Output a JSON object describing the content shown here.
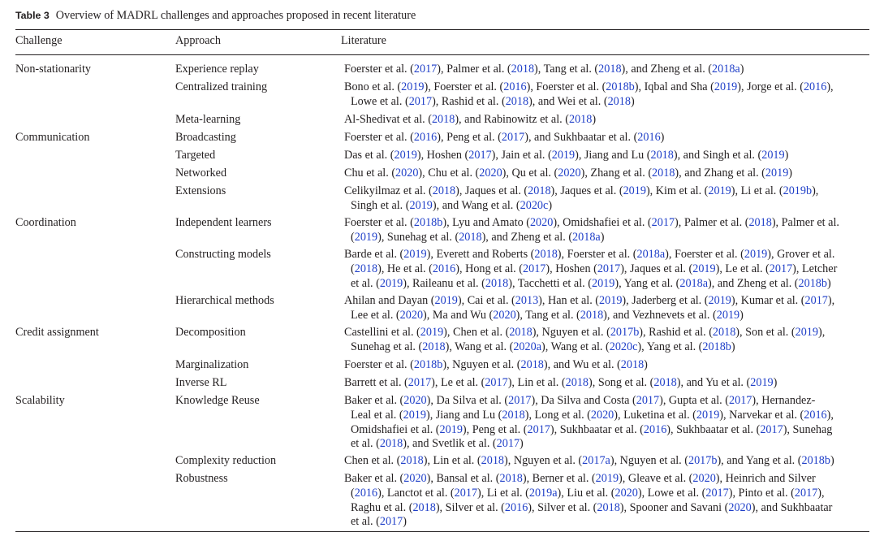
{
  "table": {
    "label": "Table 3",
    "caption": "Overview of MADRL challenges and approaches proposed in recent literature",
    "headers": {
      "challenge": "Challenge",
      "approach": "Approach",
      "literature": "Literature"
    },
    "rows": [
      {
        "challenge": "Non-stationarity",
        "approach": "Experience replay",
        "literature": [
          "Foerster et al. (2017), Palmer et al. (2018), Tang et al. (2018), and  Zheng et al. (2018a)"
        ]
      },
      {
        "challenge": "",
        "approach": "Centralized training",
        "literature": [
          "Bono et al. (2019), Foerster et al. (2016), Foerster et al. (2018b), Iqbal and Sha (2019), Jorge et al. (2016),",
          "Lowe et al. (2017), Rashid et al. (2018), and Wei et al. (2018)"
        ]
      },
      {
        "challenge": "",
        "approach": "Meta-learning",
        "literature": [
          "Al-Shedivat et al. (2018), and Rabinowitz et al. (2018)"
        ]
      },
      {
        "challenge": "Communication",
        "approach": "Broadcasting",
        "literature": [
          "Foerster et al. (2016), Peng et al. (2017), and Sukhbaatar et al. (2016)"
        ]
      },
      {
        "challenge": "",
        "approach": "Targeted",
        "literature": [
          "Das et al. (2019), Hoshen (2017), Jain et al. (2019), Jiang and Lu (2018), and Singh et al. (2019)"
        ]
      },
      {
        "challenge": "",
        "approach": "Networked",
        "literature": [
          "Chu et al. (2020), Chu et al. (2020), Qu et al. (2020), Zhang et al. (2018), and Zhang et al. (2019)"
        ]
      },
      {
        "challenge": "",
        "approach": "Extensions",
        "literature": [
          "Celikyilmaz et al. (2018), Jaques et al. (2018), Jaques et al. (2019), Kim et al. (2019), Li et al. (2019b),",
          "Singh et al. (2019), and Wang et al. (2020c)"
        ]
      },
      {
        "challenge": "Coordination",
        "approach": "Independent learners",
        "literature": [
          "Foerster et al. (2018b), Lyu and Amato (2020), Omidshafiei et al. (2017), Palmer et al. (2018), Palmer et al.",
          "(2019), Sunehag et al. (2018), and Zheng et al. (2018a)"
        ]
      },
      {
        "challenge": "",
        "approach": "Constructing models",
        "literature": [
          "Barde et al. (2019), Everett and Roberts (2018), Foerster et al. (2018a), Foerster et al. (2019), Grover et al.",
          "(2018), He et al. (2016), Hong et al. (2017), Hoshen (2017), Jaques et al. (2019), Le et al. (2017), Letcher",
          "et al. (2019), Raileanu et al. (2018), Tacchetti et al. (2019), Yang et al. (2018a), and Zheng et al. (2018b)"
        ]
      },
      {
        "challenge": "",
        "approach": "Hierarchical methods",
        "literature": [
          "Ahilan and Dayan (2019), Cai et al. (2013), Han et al. (2019), Jaderberg et al. (2019), Kumar et al. (2017),",
          "Lee et al. (2020), Ma and Wu (2020), Tang et al. (2018), and Vezhnevets et al. (2019)"
        ]
      },
      {
        "challenge": "Credit assignment",
        "approach": "Decomposition",
        "literature": [
          "Castellini et al. (2019), Chen et al. (2018), Nguyen et al. (2017b), Rashid et al. (2018), Son et al. (2019),",
          "Sunehag et al. (2018), Wang et al. (2020a), Wang et al. (2020c), Yang et al. (2018b)"
        ]
      },
      {
        "challenge": "",
        "approach": "Marginalization",
        "literature": [
          "Foerster et al. (2018b), Nguyen et al. (2018), and Wu et al. (2018)"
        ]
      },
      {
        "challenge": "",
        "approach": "Inverse RL",
        "literature": [
          "Barrett et al. (2017), Le et al. (2017), Lin et al. (2018), Song et al. (2018), and Yu et al. (2019)"
        ]
      },
      {
        "challenge": "Scalability",
        "approach": "Knowledge Reuse",
        "literature": [
          "Baker et al. (2020), Da Silva et al. (2017), Da Silva and Costa (2017), Gupta et al. (2017), Hernandez-",
          "Leal et al. (2019), Jiang and Lu (2018), Long et al. (2020), Luketina et al. (2019), Narvekar et al. (2016),",
          "Omidshafiei et al. (2019), Peng et al. (2017), Sukhbaatar et al. (2016), Sukhbaatar et al. (2017), Sunehag",
          "et al. (2018), and Svetlik et al. (2017)"
        ]
      },
      {
        "challenge": "",
        "approach": "Complexity reduction",
        "literature": [
          "Chen et al. (2018), Lin et al. (2018), Nguyen et al. (2017a), Nguyen et al. (2017b),  and Yang et al. (2018b)"
        ]
      },
      {
        "challenge": "",
        "approach": "Robustness",
        "literature": [
          "Baker et al. (2020), Bansal et al. (2018), Berner et al. (2019), Gleave et al. (2020), Heinrich and Silver",
          "(2016), Lanctot et al. (2017), Li et al. (2019a), Liu et al. (2020), Lowe et al. (2017), Pinto et al. (2017),",
          "Raghu et al. (2018), Silver et al. (2016), Silver et al. (2018), Spooner and Savani (2020), and Sukhbaatar",
          "et al. (2017)"
        ]
      }
    ]
  },
  "colors": {
    "text": "#231f20",
    "link": "#1f3fc8"
  }
}
